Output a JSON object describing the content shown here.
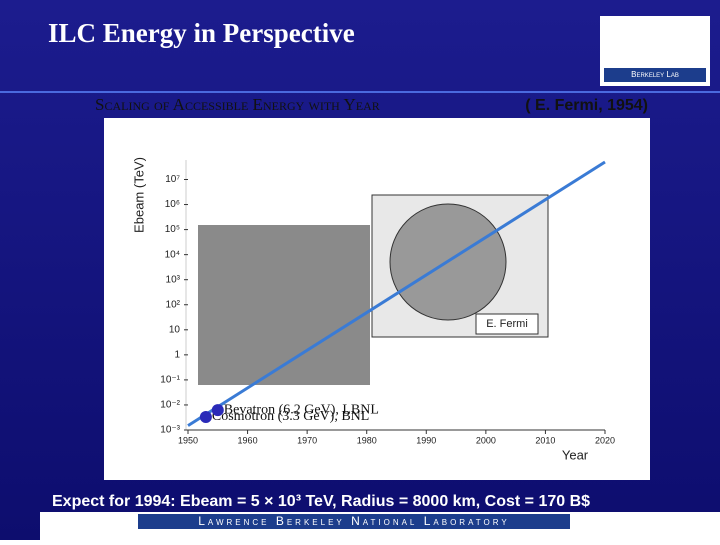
{
  "slide": {
    "title": "ILC Energy in Perspective",
    "logo": "Berkeley Lab",
    "footer": "Expect for 1994: Ebeam = 5 × 10³ TeV, Radius = 8000 km, Cost = 170 B$",
    "lab": "Lawrence Berkeley National Laboratory",
    "photo_caption": "E. Fermi"
  },
  "chart_data": {
    "type": "line",
    "title": "Scaling of Accessible Energy with Year",
    "subtitle": "( E. Fermi, 1954)",
    "y_label": "Ebeam (TeV)",
    "x_label": "Year",
    "log_y": true,
    "xlim": [
      1950,
      2020
    ],
    "xticks": [
      1950,
      1960,
      1970,
      1980,
      1990,
      2000,
      2010,
      2020
    ],
    "ylim": [
      0.001,
      60000000
    ],
    "yticks": [
      {
        "value": 10000000,
        "label": "10⁷"
      },
      {
        "value": 1000000,
        "label": "10⁶"
      },
      {
        "value": 100000,
        "label": "10⁵"
      },
      {
        "value": 10000,
        "label": "10⁴"
      },
      {
        "value": 1000,
        "label": "10³"
      },
      {
        "value": 100,
        "label": "10²"
      },
      10,
      1,
      {
        "value": 0.1,
        "label": "10⁻¹"
      },
      {
        "value": 0.01,
        "label": "10⁻²"
      },
      {
        "value": 0.001,
        "label": "10⁻³"
      }
    ],
    "trend": {
      "color": "#3a7bd5",
      "x": [
        1950,
        2020
      ],
      "values": [
        0.0015,
        50000000
      ]
    },
    "points": {
      "color": "#2a2ab8",
      "x": [
        1953,
        1955
      ],
      "values": [
        0.0033,
        0.0062
      ],
      "labels": [
        "Cosmotron (3.3 GeV), BNL",
        "Bevatron (6.2 GeV), LBNL"
      ]
    }
  }
}
